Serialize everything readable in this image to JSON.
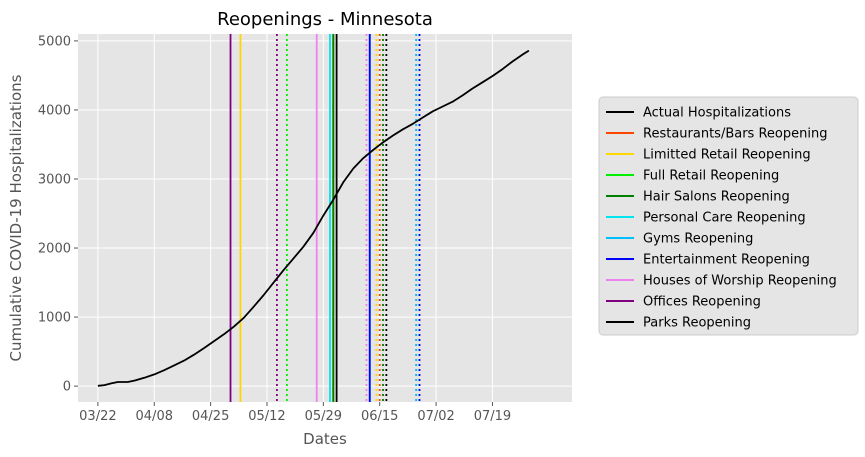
{
  "chart_data": {
    "type": "line",
    "title": "Reopenings - Minnesota",
    "xlabel": "Dates",
    "ylabel": "Cumulative COVID-19 Hospitalizations",
    "xlim": [
      "2020-03-16",
      "2020-08-12"
    ],
    "ylim": [
      -230,
      5100
    ],
    "grid": true,
    "legend_position": "right",
    "x_ticks": [
      {
        "date": "2020-03-22",
        "label": "03/22"
      },
      {
        "date": "2020-04-08",
        "label": "04/08"
      },
      {
        "date": "2020-04-25",
        "label": "04/25"
      },
      {
        "date": "2020-05-12",
        "label": "05/12"
      },
      {
        "date": "2020-05-29",
        "label": "05/29"
      },
      {
        "date": "2020-06-15",
        "label": "06/15"
      },
      {
        "date": "2020-07-02",
        "label": "07/02"
      },
      {
        "date": "2020-07-19",
        "label": "07/19"
      }
    ],
    "y_ticks": [
      0,
      1000,
      2000,
      3000,
      4000,
      5000
    ],
    "series": [
      {
        "name": "Actual Hospitalizations",
        "color": "#000000",
        "points": [
          [
            "2020-03-22",
            5
          ],
          [
            "2020-03-24",
            15
          ],
          [
            "2020-03-26",
            40
          ],
          [
            "2020-03-28",
            60
          ],
          [
            "2020-03-31",
            60
          ],
          [
            "2020-04-02",
            80
          ],
          [
            "2020-04-05",
            120
          ],
          [
            "2020-04-08",
            170
          ],
          [
            "2020-04-11",
            230
          ],
          [
            "2020-04-14",
            300
          ],
          [
            "2020-04-17",
            370
          ],
          [
            "2020-04-20",
            455
          ],
          [
            "2020-04-23",
            550
          ],
          [
            "2020-04-26",
            650
          ],
          [
            "2020-04-29",
            750
          ],
          [
            "2020-05-02",
            860
          ],
          [
            "2020-05-05",
            990
          ],
          [
            "2020-05-08",
            1150
          ],
          [
            "2020-05-11",
            1320
          ],
          [
            "2020-05-14",
            1500
          ],
          [
            "2020-05-17",
            1680
          ],
          [
            "2020-05-20",
            1850
          ],
          [
            "2020-05-23",
            2020
          ],
          [
            "2020-05-26",
            2220
          ],
          [
            "2020-05-29",
            2470
          ],
          [
            "2020-06-01",
            2700
          ],
          [
            "2020-06-04",
            2950
          ],
          [
            "2020-06-07",
            3150
          ],
          [
            "2020-06-10",
            3300
          ],
          [
            "2020-06-13",
            3420
          ],
          [
            "2020-06-16",
            3530
          ],
          [
            "2020-06-19",
            3630
          ],
          [
            "2020-06-22",
            3720
          ],
          [
            "2020-06-25",
            3800
          ],
          [
            "2020-06-28",
            3890
          ],
          [
            "2020-07-01",
            3980
          ],
          [
            "2020-07-04",
            4050
          ],
          [
            "2020-07-07",
            4120
          ],
          [
            "2020-07-10",
            4210
          ],
          [
            "2020-07-13",
            4310
          ],
          [
            "2020-07-16",
            4400
          ],
          [
            "2020-07-19",
            4490
          ],
          [
            "2020-07-22",
            4590
          ],
          [
            "2020-07-25",
            4700
          ],
          [
            "2020-07-28",
            4800
          ],
          [
            "2020-07-30",
            4860
          ]
        ]
      }
    ],
    "reopenings": [
      {
        "name": "Restaurants/Bars Reopening",
        "color": "#ff4500",
        "solid": "2020-06-01",
        "dotted": "2020-06-15"
      },
      {
        "name": "Limitted Retail Reopening",
        "color": "#ffd700",
        "solid": "2020-05-04",
        "dotted": "2020-06-14"
      },
      {
        "name": "Full Retail Reopening",
        "color": "#00ee00",
        "solid": "2020-06-01",
        "dotted": "2020-05-18"
      },
      {
        "name": "Hair Salons Reopening",
        "color": "#008000",
        "solid": "2020-06-01",
        "dotted": "2020-06-16"
      },
      {
        "name": "Personal Care Reopening",
        "color": "#00e5ee",
        "solid": "2020-05-31",
        "dotted": "2020-06-26"
      },
      {
        "name": "Gyms Reopening",
        "color": "#00bfff",
        "solid": "2020-06-12",
        "dotted": "2020-06-26"
      },
      {
        "name": "Entertainment Reopening",
        "color": "#0000ff",
        "solid": "2020-06-12",
        "dotted": "2020-06-27"
      },
      {
        "name": "Houses of Worship Reopening",
        "color": "#ee82ee",
        "solid": "2020-05-27",
        "dotted": "2020-06-11"
      },
      {
        "name": "Offices Reopening",
        "color": "#800080",
        "solid": "2020-05-01",
        "dotted": "2020-05-15"
      },
      {
        "name": "Parks Reopening",
        "color": "#000000",
        "solid": "2020-06-02",
        "dotted": "2020-06-17"
      }
    ],
    "legend": [
      {
        "label": "Actual Hospitalizations",
        "color": "#000000"
      },
      {
        "label": "Restaurants/Bars Reopening",
        "color": "#ff4500"
      },
      {
        "label": "Limitted Retail Reopening",
        "color": "#ffd700"
      },
      {
        "label": "Full Retail Reopening",
        "color": "#00ee00"
      },
      {
        "label": "Hair Salons Reopening",
        "color": "#008000"
      },
      {
        "label": "Personal Care Reopening",
        "color": "#00e5ee"
      },
      {
        "label": "Gyms Reopening",
        "color": "#00bfff"
      },
      {
        "label": "Entertainment Reopening",
        "color": "#0000ff"
      },
      {
        "label": "Houses of Worship Reopening",
        "color": "#ee82ee"
      },
      {
        "label": "Offices Reopening",
        "color": "#800080"
      },
      {
        "label": "Parks Reopening",
        "color": "#000000"
      }
    ]
  }
}
